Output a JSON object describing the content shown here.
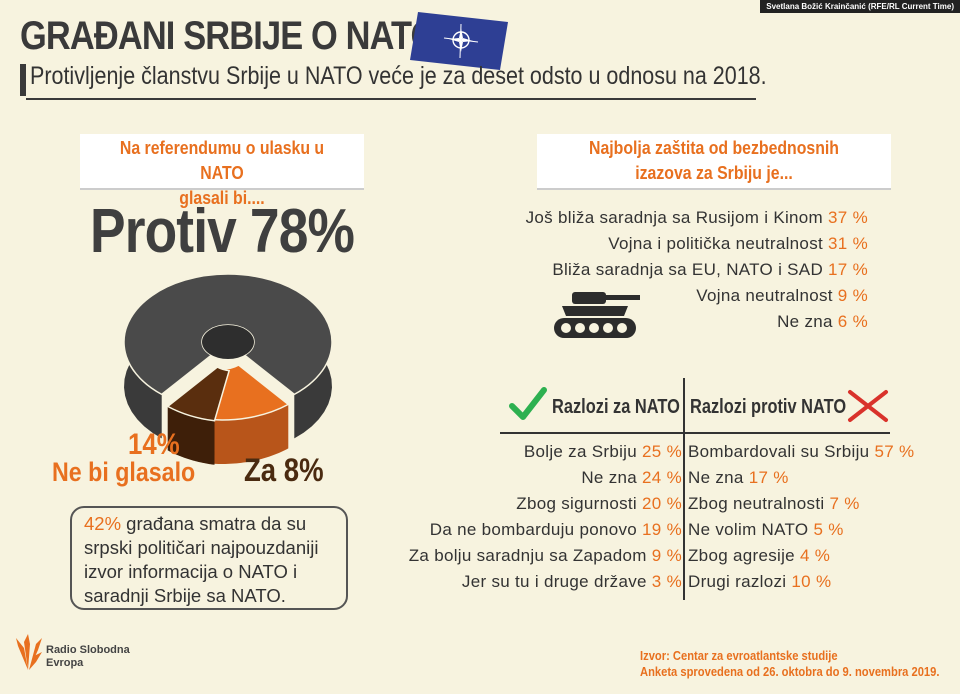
{
  "credit": "Svetlana Božić Krainčanić (RFE/RL Current Time)",
  "title": "GRAĐANI SRBIJE O NATO",
  "subtitle": "Protivljenje članstvu Srbije u NATO veće je za deset odsto u odnosu na 2018.",
  "referendum": {
    "heading_line1": "Na referendumu o ulasku u NATO",
    "heading_line2": "glasali bi....",
    "big_label": "Protiv 78%",
    "label_14": "14%",
    "label_ne_bi": "Ne bi glasalo",
    "label_za": "Za 8%"
  },
  "note": {
    "pct": "42%",
    "text": "građana smatra da su srpski političari najpouzdaniji izvor informacija o NATO i saradnji Srbije sa NATO."
  },
  "security": {
    "heading_line1": "Najbolja zaštita od bezbednosnih",
    "heading_line2": "izazova za Srbiju je...",
    "items": [
      {
        "label": "Još bliža saradnja sa Rusijom i Kinom",
        "pct": "37 %"
      },
      {
        "label": "Vojna i politička neutralnost",
        "pct": "31 %"
      },
      {
        "label": "Bliža saradnja sa EU, NATO i SAD",
        "pct": "17 %"
      },
      {
        "label": "Vojna neutralnost",
        "pct": "9 %"
      },
      {
        "label": "Ne zna",
        "pct": "6 %"
      }
    ]
  },
  "reasons": {
    "for_heading": "Razlozi za NATO",
    "against_heading": "Razlozi protiv NATO",
    "for_items": [
      {
        "label": "Bolje za Srbiju",
        "pct": "25 %"
      },
      {
        "label": "Ne zna",
        "pct": "24 %"
      },
      {
        "label": "Zbog sigurnosti",
        "pct": "20 %"
      },
      {
        "label": "Da ne bombarduju ponovo",
        "pct": "19 %"
      },
      {
        "label": "Za bolju saradnju sa Zapadom",
        "pct": "9 %"
      },
      {
        "label": "Jer su tu i druge države",
        "pct": "3 %"
      }
    ],
    "against_items": [
      {
        "label": "Bombardovali su Srbiju",
        "pct": "57 %"
      },
      {
        "label": "Ne zna",
        "pct": "17 %"
      },
      {
        "label": "Zbog neutralnosti",
        "pct": "7 %"
      },
      {
        "label": "Ne volim NATO",
        "pct": "5 %"
      },
      {
        "label": "Zbog agresije",
        "pct": "4 %"
      },
      {
        "label": "Drugi razlozi",
        "pct": "10 %"
      }
    ]
  },
  "logo": {
    "line1": "Radio Slobodna",
    "line2": "Evropa"
  },
  "source": {
    "line1": "Izvor: Centar za evroatlantske studije",
    "line2": "Anketa sprovedena od 26. oktobra do 9. novembra 2019."
  },
  "colors": {
    "orange": "#e8701f",
    "dark_gray": "#4a4a4a",
    "brown": "#5a2e0e",
    "navy": "#2e3f94"
  },
  "chart_data": {
    "type": "pie",
    "categories": [
      "Protiv",
      "Ne bi glasalo",
      "Za"
    ],
    "values": [
      78,
      14,
      8
    ]
  }
}
